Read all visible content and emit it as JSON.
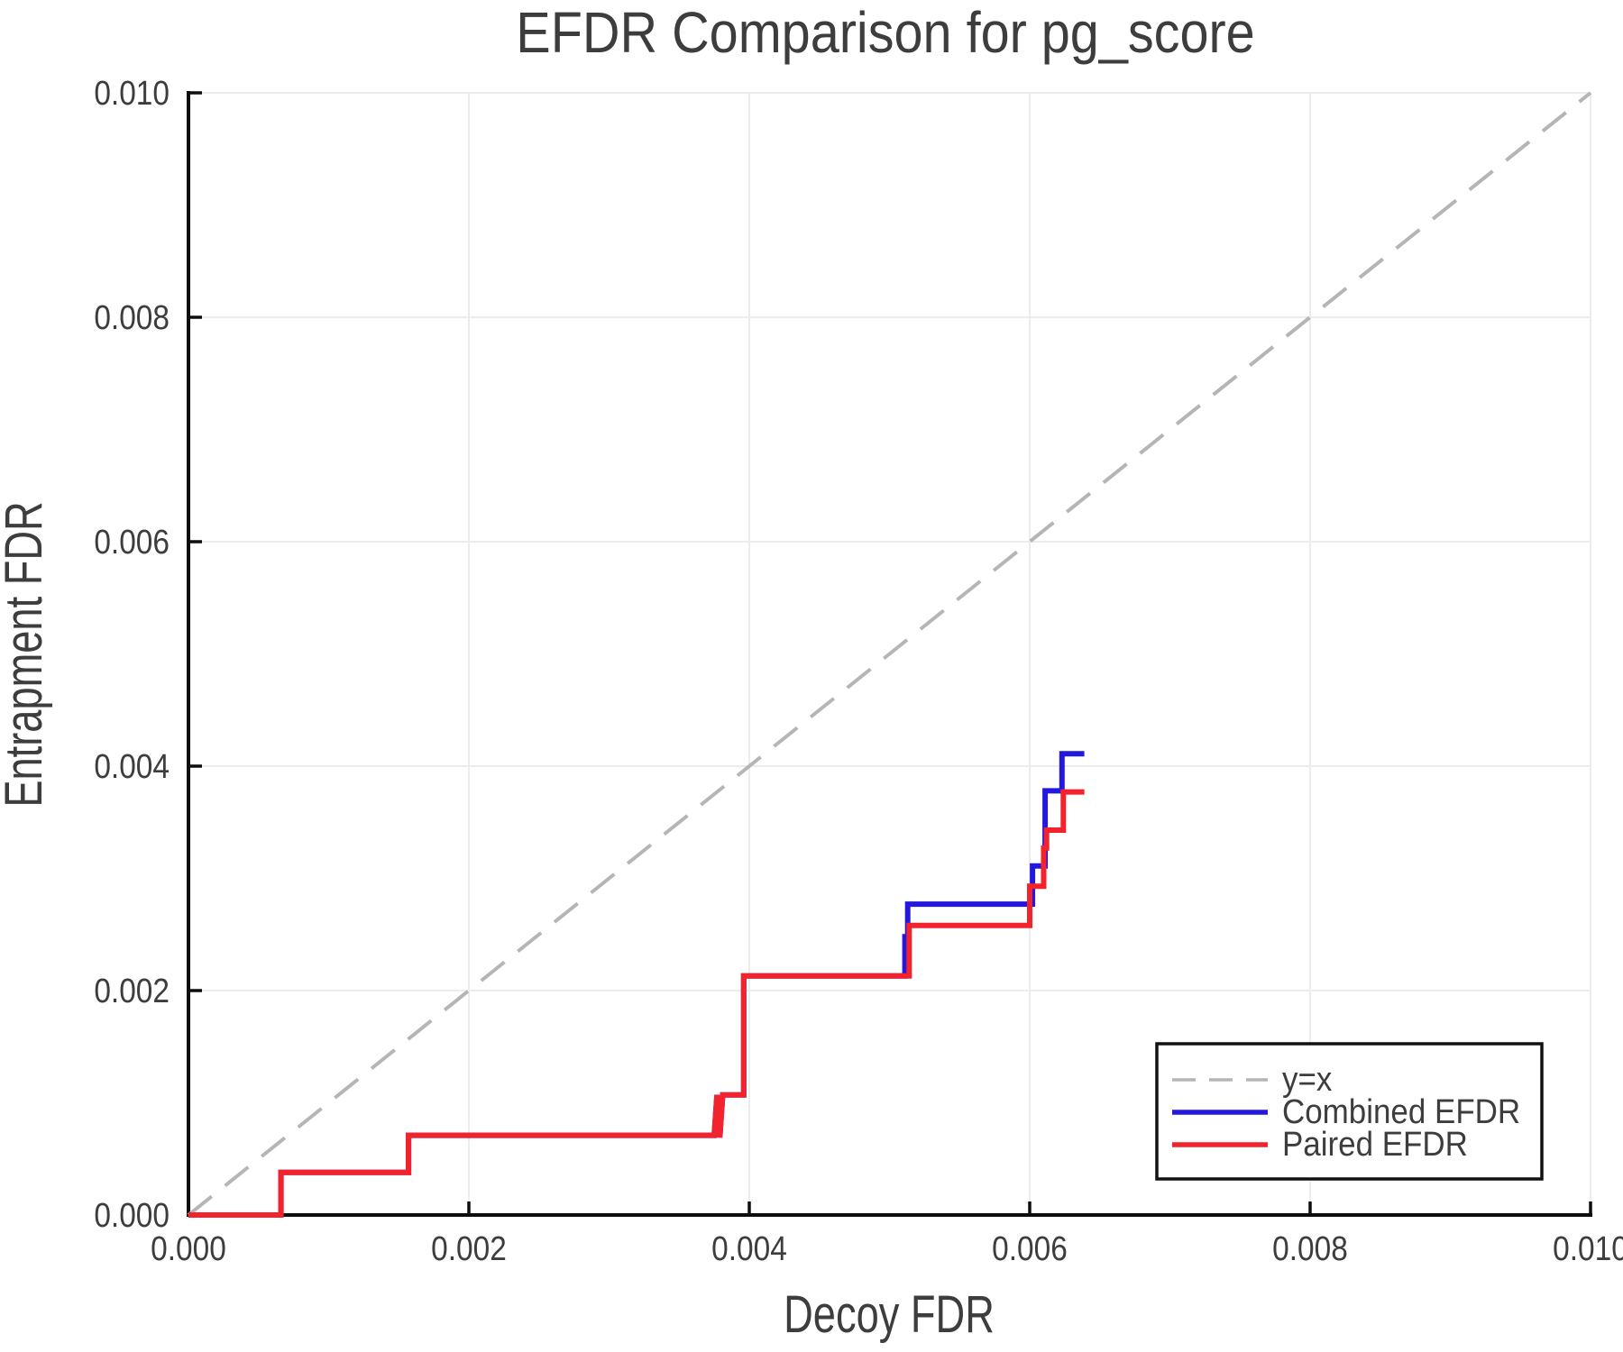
{
  "chart_data": {
    "type": "line",
    "title": "EFDR Comparison for pg_score",
    "xlabel": "Decoy FDR",
    "ylabel": "Entrapment FDR",
    "xlim": [
      0.0,
      0.01
    ],
    "ylim": [
      0.0,
      0.01
    ],
    "grid": true,
    "legend_position": "lower right",
    "x_ticks": {
      "values": [
        0.0,
        0.002,
        0.004,
        0.006,
        0.008,
        0.01
      ],
      "labels": [
        "0.000",
        "0.002",
        "0.004",
        "0.006",
        "0.008",
        "0.010"
      ]
    },
    "y_ticks": {
      "values": [
        0.0,
        0.002,
        0.004,
        0.006,
        0.008,
        0.01
      ],
      "labels": [
        "0.000",
        "0.002",
        "0.004",
        "0.006",
        "0.008",
        "0.010"
      ]
    },
    "reference_line": {
      "label": "y=x",
      "style": "dashed",
      "color": "#b5b5b5",
      "points": [
        [
          0.0,
          0.0
        ],
        [
          0.01,
          0.01
        ]
      ]
    },
    "series": [
      {
        "name": "Combined EFDR",
        "color": "#2319dc",
        "style": "solid",
        "points": [
          [
            0.0,
            0.0
          ],
          [
            0.00066,
            0.0
          ],
          [
            0.00066,
            0.00038
          ],
          [
            0.00157,
            0.00038
          ],
          [
            0.00157,
            0.00071
          ],
          [
            0.00375,
            0.00071
          ],
          [
            0.00377,
            0.00107
          ],
          [
            0.00379,
            0.00069
          ],
          [
            0.00381,
            0.00107
          ],
          [
            0.00396,
            0.00107
          ],
          [
            0.00396,
            0.00213
          ],
          [
            0.00511,
            0.00213
          ],
          [
            0.00511,
            0.00248
          ],
          [
            0.00513,
            0.00248
          ],
          [
            0.00513,
            0.00277
          ],
          [
            0.00602,
            0.00277
          ],
          [
            0.00602,
            0.00311
          ],
          [
            0.00611,
            0.00311
          ],
          [
            0.00611,
            0.00378
          ],
          [
            0.00623,
            0.00378
          ],
          [
            0.00623,
            0.00411
          ],
          [
            0.00639,
            0.00411
          ]
        ]
      },
      {
        "name": "Paired EFDR",
        "color": "#f2232d",
        "style": "solid",
        "points": [
          [
            0.0,
            0.0
          ],
          [
            0.00066,
            0.0
          ],
          [
            0.00066,
            0.00038
          ],
          [
            0.00157,
            0.00038
          ],
          [
            0.00157,
            0.00071
          ],
          [
            0.00375,
            0.00071
          ],
          [
            0.00377,
            0.00107
          ],
          [
            0.00379,
            0.00069
          ],
          [
            0.00381,
            0.00107
          ],
          [
            0.00396,
            0.00107
          ],
          [
            0.00396,
            0.00213
          ],
          [
            0.00514,
            0.00213
          ],
          [
            0.00514,
            0.00258
          ],
          [
            0.006,
            0.00258
          ],
          [
            0.006,
            0.00293
          ],
          [
            0.0061,
            0.00293
          ],
          [
            0.0061,
            0.00327
          ],
          [
            0.00612,
            0.00327
          ],
          [
            0.00612,
            0.00343
          ],
          [
            0.00624,
            0.00343
          ],
          [
            0.00624,
            0.00377
          ],
          [
            0.00639,
            0.00377
          ]
        ]
      }
    ],
    "style": {
      "background": "#ffffff",
      "grid_color": "#ececec",
      "spine_color": "#0d0d0d",
      "tick_color": "#0d0d0d",
      "text_color": "#3d3d3d",
      "legend_border_color": "#111111",
      "legend_background": "#ffffff"
    }
  }
}
